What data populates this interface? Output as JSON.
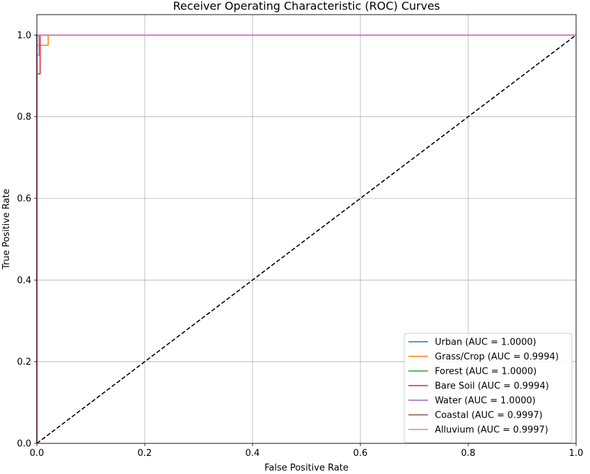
{
  "chart_data": {
    "type": "line",
    "title": "Receiver Operating Characteristic (ROC) Curves",
    "xlabel": "False Positive Rate",
    "ylabel": "True Positive Rate",
    "xlim": [
      0,
      1
    ],
    "ylim": [
      0,
      1.05
    ],
    "xticks": [
      "0.0",
      "0.2",
      "0.4",
      "0.6",
      "0.8",
      "1.0"
    ],
    "yticks": [
      "0.0",
      "0.2",
      "0.4",
      "0.6",
      "0.8",
      "1.0"
    ],
    "grid": true,
    "legend_position": "lower-right",
    "series": [
      {
        "name": "Urban (AUC = 1.0000)",
        "color": "#1f77b4",
        "style": "solid",
        "x": [
          0,
          0,
          1
        ],
        "y": [
          0,
          1,
          1
        ]
      },
      {
        "name": "Grass/Crop (AUC = 0.9994)",
        "color": "#ff7f0e",
        "style": "solid",
        "x": [
          0,
          0,
          0.021,
          0.021,
          1
        ],
        "y": [
          0,
          0.975,
          0.975,
          1,
          1
        ]
      },
      {
        "name": "Forest (AUC = 1.0000)",
        "color": "#2ca02c",
        "style": "solid",
        "x": [
          0,
          0,
          1
        ],
        "y": [
          0,
          1,
          1
        ]
      },
      {
        "name": "Bare Soil (AUC = 0.9994)",
        "color": "#d62728",
        "style": "solid",
        "x": [
          0,
          0,
          0.006,
          0.006,
          1
        ],
        "y": [
          0,
          0.905,
          0.905,
          1,
          1
        ]
      },
      {
        "name": "Water (AUC = 1.0000)",
        "color": "#9467bd",
        "style": "solid",
        "x": [
          0,
          0,
          1
        ],
        "y": [
          0,
          1,
          1
        ]
      },
      {
        "name": "Coastal (AUC = 0.9997)",
        "color": "#8c564b",
        "style": "solid",
        "x": [
          0,
          0,
          0.004,
          0.004,
          1
        ],
        "y": [
          0,
          0.95,
          0.95,
          1,
          1
        ]
      },
      {
        "name": "Alluvium (AUC = 0.9997)",
        "color": "#e377c2",
        "style": "solid",
        "x": [
          0,
          0,
          0.004,
          0.004,
          1
        ],
        "y": [
          0,
          0.95,
          0.95,
          1,
          1
        ]
      }
    ],
    "reference_line": {
      "x": [
        0,
        1
      ],
      "y": [
        0,
        1
      ],
      "color": "#000000",
      "style": "dashed"
    }
  }
}
